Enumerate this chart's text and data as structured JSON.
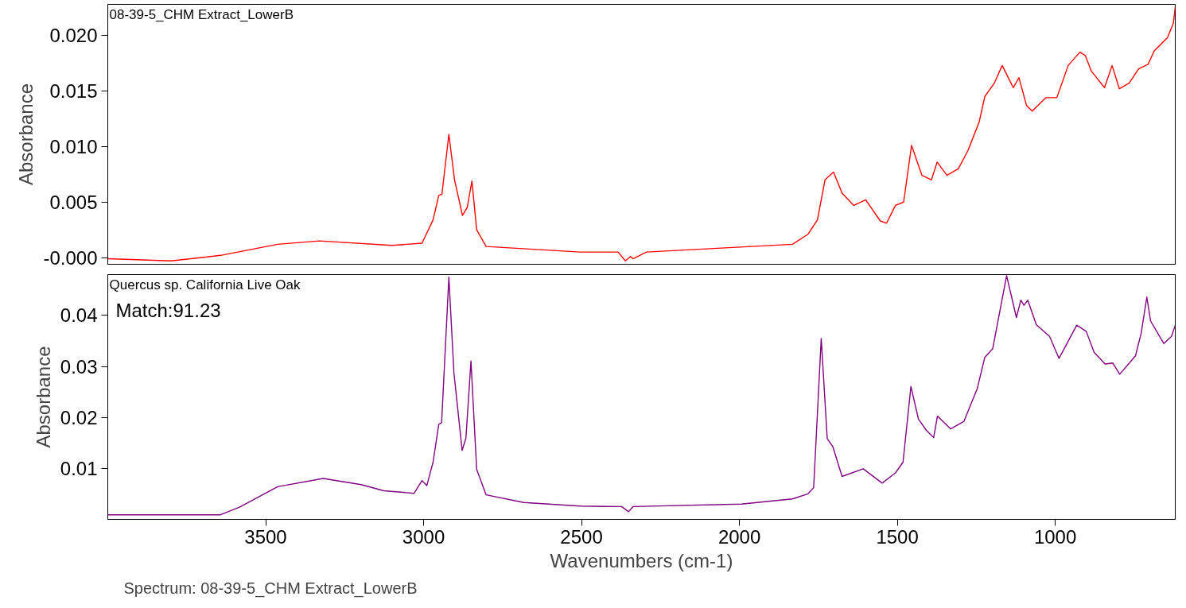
{
  "chart_data": [
    {
      "type": "line",
      "ylabel": "Absorbance",
      "xlim": [
        4000,
        620
      ],
      "ylim": [
        -0.0006,
        0.0228
      ],
      "xticks": [
        3500,
        3000,
        2500,
        2000,
        1500,
        1000
      ],
      "yticks": [
        {
          "value": 0,
          "label": "-0.000"
        },
        0.005,
        {
          "value": 0.01,
          "label": "0.010"
        },
        0.015,
        {
          "value": 0.02,
          "label": "0.020"
        }
      ],
      "tick_labels": "y",
      "grid": false,
      "series": [
        {
          "name": "08-39-5_CHM Extract_LowerB",
          "color": "#ff0000",
          "x": [
            4000,
            3800,
            3643,
            3462,
            3330,
            3100,
            3005,
            2970,
            2952,
            2942,
            2920,
            2902,
            2877,
            2862,
            2847,
            2832,
            2802,
            2505,
            2384,
            2361,
            2345,
            2337,
            2294,
            1832,
            1783,
            1753,
            1729,
            1702,
            1675,
            1638,
            1600,
            1554,
            1534,
            1506,
            1480,
            1455,
            1422,
            1392,
            1374,
            1343,
            1307,
            1277,
            1241,
            1223,
            1193,
            1168,
            1133,
            1115,
            1091,
            1073,
            1030,
            995,
            959,
            922,
            905,
            886,
            844,
            820,
            797,
            766,
            736,
            706,
            687,
            645,
            626,
            620
          ],
          "values": [
            -0.0001,
            -0.0003,
            0.0002,
            0.0012,
            0.0015,
            0.0011,
            0.0013,
            0.0034,
            0.0056,
            0.0057,
            0.0111,
            0.007,
            0.0038,
            0.0045,
            0.0069,
            0.0025,
            0.001,
            0.0005,
            0.0005,
            -0.0003,
            0.0001,
            -0.0001,
            0.0005,
            0.0012,
            0.0021,
            0.0034,
            0.007,
            0.0077,
            0.0058,
            0.0047,
            0.0052,
            0.0033,
            0.0031,
            0.0047,
            0.005,
            0.0101,
            0.0074,
            0.007,
            0.0086,
            0.0074,
            0.008,
            0.0096,
            0.0122,
            0.0145,
            0.0157,
            0.0173,
            0.0153,
            0.0162,
            0.0137,
            0.0132,
            0.0144,
            0.0144,
            0.0173,
            0.0185,
            0.0182,
            0.0168,
            0.0153,
            0.0173,
            0.0152,
            0.0157,
            0.017,
            0.0174,
            0.0186,
            0.0198,
            0.0211,
            0.0226
          ]
        }
      ]
    },
    {
      "type": "line",
      "xlabel": "Wavenumbers (cm-1)",
      "ylabel": "Absorbance",
      "xlim": [
        4000,
        620
      ],
      "ylim": [
        0.0001,
        0.048
      ],
      "xticks": [
        3500,
        3000,
        2500,
        2000,
        1500,
        1000
      ],
      "yticks": [
        0.01,
        0.02,
        0.03,
        0.04
      ],
      "grid": false,
      "annotations": [
        "Match:91.23",
        "Spectrum: 08-39-5_CHM Extract_LowerB"
      ],
      "series": [
        {
          "name": "Quercus sp. California Live Oak",
          "color": "#800080",
          "x": [
            4000,
            3643,
            3583,
            3462,
            3318,
            3198,
            3126,
            3030,
            3005,
            2990,
            2970,
            2952,
            2943,
            2920,
            2904,
            2878,
            2866,
            2850,
            2832,
            2802,
            2683,
            2505,
            2373,
            2351,
            2337,
            1994,
            1832,
            1783,
            1765,
            1741,
            1722,
            1704,
            1675,
            1608,
            1548,
            1506,
            1482,
            1457,
            1433,
            1409,
            1385,
            1373,
            1331,
            1289,
            1247,
            1223,
            1198,
            1154,
            1123,
            1109,
            1099,
            1087,
            1060,
            1018,
            988,
            932,
            902,
            877,
            842,
            818,
            796,
            746,
            728,
            710,
            698,
            656,
            632,
            620
          ],
          "values": [
            0.001,
            0.001,
            0.0025,
            0.0065,
            0.0081,
            0.0069,
            0.0057,
            0.0052,
            0.0077,
            0.0067,
            0.0113,
            0.0187,
            0.019,
            0.0475,
            0.0288,
            0.0136,
            0.016,
            0.0311,
            0.0099,
            0.0049,
            0.0034,
            0.0027,
            0.0026,
            0.0016,
            0.0026,
            0.0031,
            0.0041,
            0.0051,
            0.0063,
            0.0355,
            0.0159,
            0.0143,
            0.0085,
            0.01,
            0.0072,
            0.0092,
            0.0113,
            0.0261,
            0.0197,
            0.0176,
            0.0161,
            0.0203,
            0.0178,
            0.0193,
            0.0257,
            0.0318,
            0.0335,
            0.0478,
            0.0396,
            0.043,
            0.042,
            0.043,
            0.0382,
            0.0359,
            0.0316,
            0.0381,
            0.0369,
            0.0328,
            0.0305,
            0.0307,
            0.0285,
            0.0321,
            0.0365,
            0.0436,
            0.0389,
            0.0345,
            0.0359,
            0.0381
          ]
        }
      ]
    }
  ]
}
